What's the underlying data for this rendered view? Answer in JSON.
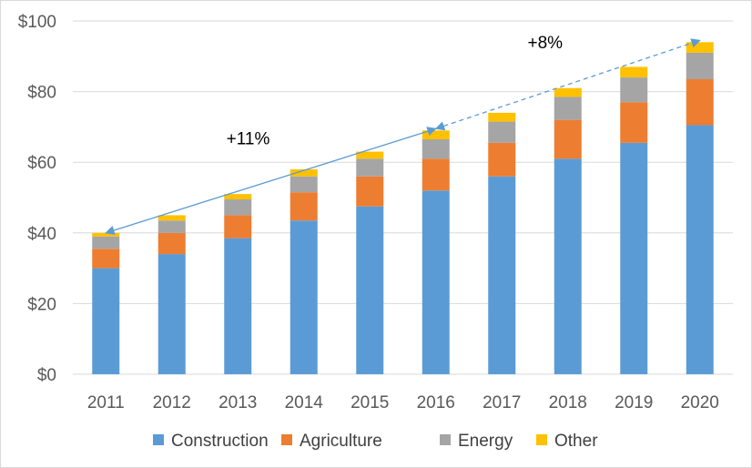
{
  "chart_data": {
    "type": "bar",
    "stacked": true,
    "categories": [
      "2011",
      "2012",
      "2013",
      "2014",
      "2015",
      "2016",
      "2017",
      "2018",
      "2019",
      "2020"
    ],
    "series": [
      {
        "name": "Construction",
        "color": "#5b9bd5",
        "values": [
          30,
          34,
          38.5,
          43.5,
          47.5,
          52,
          56,
          61,
          65.5,
          70.5
        ]
      },
      {
        "name": "Agriculture",
        "color": "#ed7d31",
        "values": [
          5.5,
          6,
          6.5,
          8,
          8.5,
          9,
          9.5,
          11,
          11.5,
          13
        ]
      },
      {
        "name": "Energy",
        "color": "#a5a5a5",
        "values": [
          3.5,
          3.5,
          4.5,
          4.5,
          5,
          5.5,
          6,
          6.5,
          7,
          7.5
        ]
      },
      {
        "name": "Other",
        "color": "#ffc000",
        "values": [
          1,
          1.5,
          1.5,
          2,
          2,
          2.5,
          2.5,
          2.5,
          3,
          3
        ]
      }
    ],
    "ylim": [
      0,
      100
    ],
    "yticks": [
      0,
      20,
      40,
      60,
      80,
      100
    ],
    "ytick_labels": [
      "$0",
      "$20",
      "$40",
      "$60",
      "$80",
      "$100"
    ],
    "grid": true,
    "legend_position": "bottom",
    "title": "",
    "xlabel": "",
    "ylabel": "",
    "annotations": [
      {
        "text": "+11%",
        "from": {
          "x": "2011",
          "y": 40
        },
        "to": {
          "x": "2016",
          "y": 69.5
        },
        "style": "solid",
        "color": "#5b9bd5"
      },
      {
        "text": "+8%",
        "from": {
          "x": "2016",
          "y": 69.5
        },
        "to": {
          "x": "2020",
          "y": 94.5
        },
        "style": "dashed",
        "color": "#5b9bd5"
      }
    ]
  }
}
